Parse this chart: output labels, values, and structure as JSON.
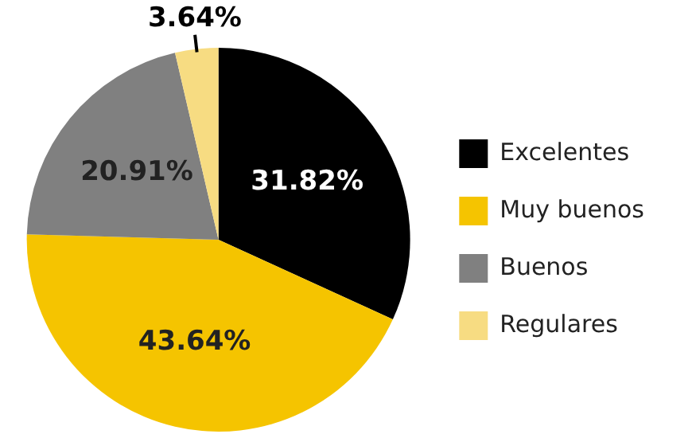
{
  "chart_data": {
    "type": "pie",
    "categories": [
      "Excelentes",
      "Muy buenos",
      "Buenos",
      "Regulares"
    ],
    "values": [
      31.82,
      43.64,
      20.91,
      3.64
    ],
    "colors": [
      "#000000",
      "#f5c400",
      "#808080",
      "#f7dc82"
    ],
    "value_labels": [
      "31.82%",
      "43.64%",
      "20.91%",
      "3.64%"
    ],
    "legend": "right"
  }
}
